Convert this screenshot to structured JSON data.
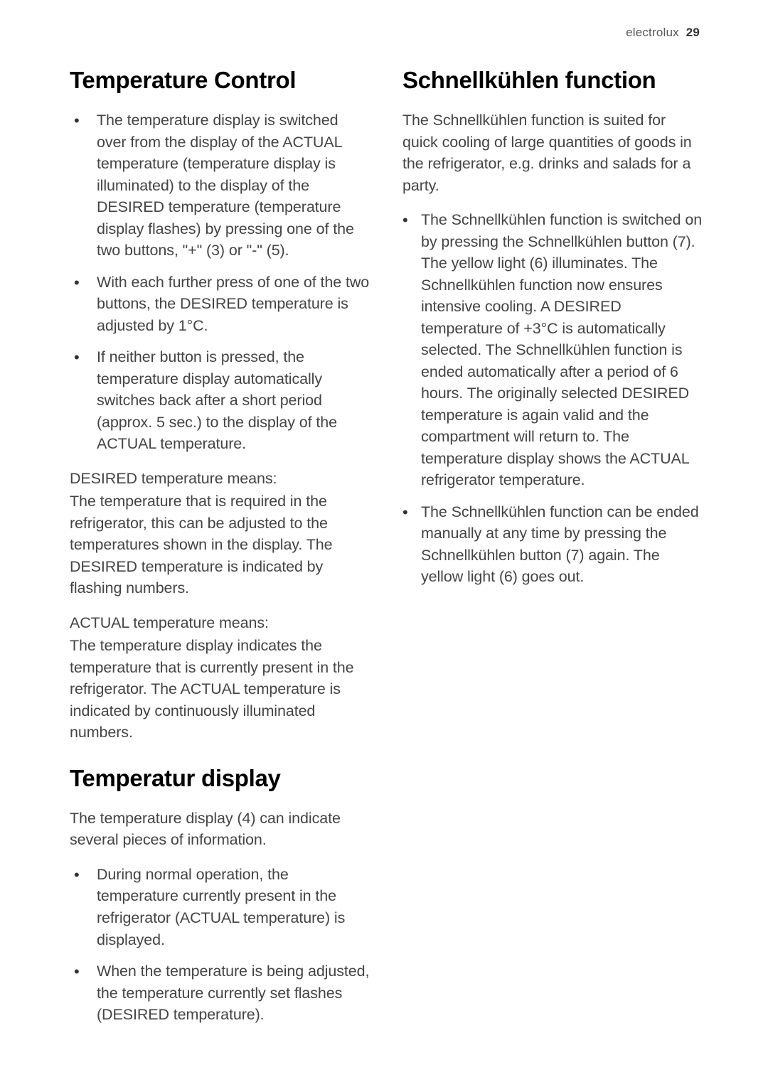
{
  "header": {
    "brand": "electrolux",
    "page": "29"
  },
  "left": {
    "h1": "Temperature Control",
    "list1": [
      "The temperature display is switched over from the display of the ACTUAL temperature (temperature display is illuminated) to the display of the DESIRED temperature (temperature display flashes) by pressing one of the two buttons, \"+\" (3) or \"-\" (5).",
      "With each further press of one of the two buttons, the DESIRED temperature is adjusted by 1°C.",
      "If neither button is pressed, the temperature display automatically switches back after a short period (approx. 5 sec.) to the display of the ACTUAL temperature."
    ],
    "desired_label": "DESIRED temperature means:",
    "desired_body": "The temperature that is required in the refrigerator, this can be adjusted to the temperatures shown in the display. The DESIRED temperature is indicated by flashing numbers.",
    "actual_label": "ACTUAL temperature means:",
    "actual_body": "The temperature display indicates the temperature that is currently present in the refrigerator. The ACTUAL temperature is indicated by continuously illuminated numbers.",
    "h2": "Temperatur display",
    "h2_intro": "The temperature display (4) can indicate several pieces of information.",
    "list2": [
      "During normal operation, the temperature currently present in the refrigerator (ACTUAL temperature) is displayed.",
      "When the temperature is being adjusted, the temperature currently set flashes (DESIRED temperature)."
    ]
  },
  "right": {
    "h1": "Schnellkühlen function",
    "intro": "The Schnellkühlen function is suited for quick cooling of large quantities of goods in the refrigerator, e.g. drinks and salads for a party.",
    "list": [
      "The Schnellkühlen function is switched on by pressing the Schnellkühlen button (7). The yellow light (6) illuminates. The Schnellkühlen function now ensures intensive cooling. A DESIRED temperature of +3°C is automatically selected. The Schnellkühlen function is ended automatically after a period of 6 hours. The originally selected DESIRED temperature is again valid and the compartment will return to. The temperature display shows the ACTUAL refrigerator temperature.",
      "The Schnellkühlen function can be ended manually at any time by pressing the Schnellkühlen button (7) again. The yellow light (6) goes out."
    ]
  }
}
